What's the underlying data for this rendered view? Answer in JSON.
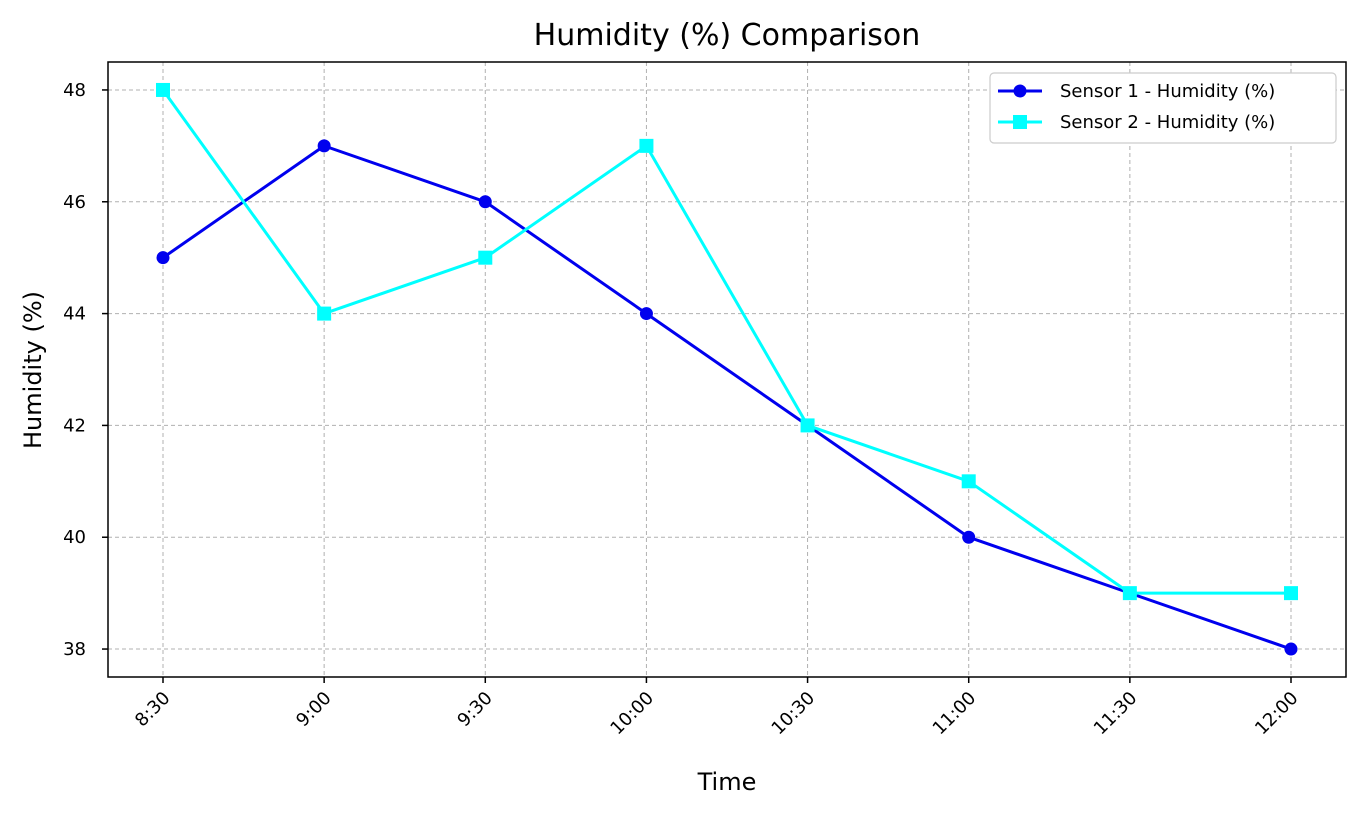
{
  "chart_data": {
    "type": "line",
    "title": "Humidity (%) Comparison",
    "xlabel": "Time",
    "ylabel": "Humidity (%)",
    "categories": [
      "8:30",
      "9:00",
      "9:30",
      "10:00",
      "10:30",
      "11:00",
      "11:30",
      "12:00"
    ],
    "yticks": [
      38,
      40,
      42,
      44,
      46,
      48
    ],
    "ylim": [
      37.5,
      48.5
    ],
    "grid": true,
    "legend_position": "top-right",
    "series": [
      {
        "name": "Sensor 1 - Humidity (%)",
        "values": [
          45,
          47,
          46,
          44,
          42,
          40,
          39,
          38
        ],
        "color": "#0000ee",
        "marker": "circle"
      },
      {
        "name": "Sensor 2 - Humidity (%)",
        "values": [
          48,
          44,
          45,
          47,
          42,
          41,
          39,
          39
        ],
        "color": "#00ffff",
        "marker": "square"
      }
    ]
  }
}
